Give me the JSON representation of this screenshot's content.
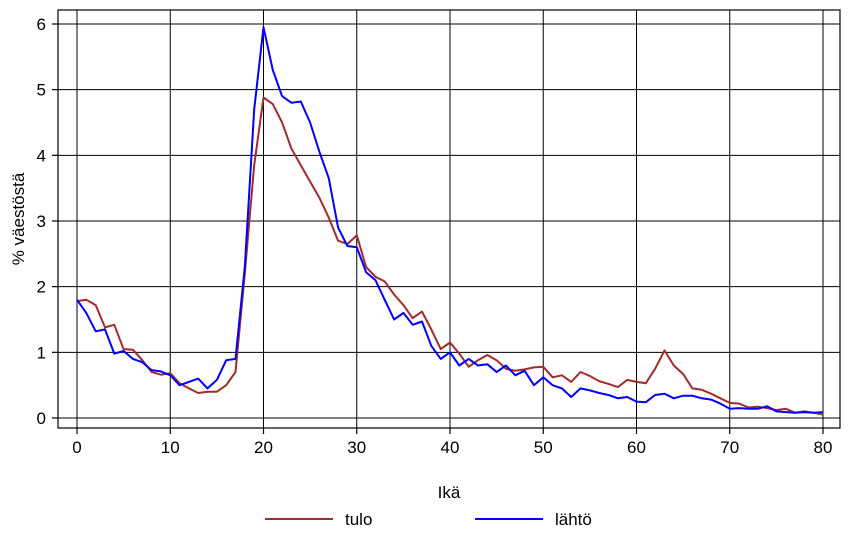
{
  "chart_data": {
    "type": "line",
    "title": "",
    "xlabel": "Ikä",
    "ylabel": "% väestöstä",
    "xlim": [
      0,
      80
    ],
    "ylim": [
      0,
      6
    ],
    "xticks": [
      0,
      10,
      20,
      30,
      40,
      50,
      60,
      70,
      80
    ],
    "yticks": [
      0,
      1,
      2,
      3,
      4,
      5,
      6
    ],
    "x_tick_labels": [
      "0",
      "10",
      "20",
      "30",
      "40",
      "50",
      "60",
      "70",
      "80"
    ],
    "y_tick_labels": [
      "0",
      "1",
      "2",
      "3",
      "4",
      "5",
      "6"
    ],
    "grid": true,
    "legend_position": "bottom",
    "x": [
      0,
      1,
      2,
      3,
      4,
      5,
      6,
      7,
      8,
      9,
      10,
      11,
      12,
      13,
      14,
      15,
      16,
      17,
      18,
      19,
      20,
      21,
      22,
      23,
      24,
      25,
      26,
      27,
      28,
      29,
      30,
      31,
      32,
      33,
      34,
      35,
      36,
      37,
      38,
      39,
      40,
      41,
      42,
      43,
      44,
      45,
      46,
      47,
      48,
      49,
      50,
      51,
      52,
      53,
      54,
      55,
      56,
      57,
      58,
      59,
      60,
      61,
      62,
      63,
      64,
      65,
      66,
      67,
      68,
      69,
      70,
      71,
      72,
      73,
      74,
      75,
      76,
      77,
      78,
      79,
      80
    ],
    "series": [
      {
        "name": "tulo",
        "color": "#a52a2a",
        "values": [
          1.78,
          1.8,
          1.72,
          1.38,
          1.42,
          1.05,
          1.04,
          0.88,
          0.7,
          0.66,
          0.68,
          0.53,
          0.45,
          0.38,
          0.4,
          0.4,
          0.5,
          0.7,
          2.2,
          3.85,
          4.88,
          4.78,
          4.5,
          4.1,
          3.85,
          3.6,
          3.35,
          3.05,
          2.7,
          2.65,
          2.78,
          2.3,
          2.15,
          2.08,
          1.88,
          1.72,
          1.52,
          1.62,
          1.35,
          1.05,
          1.15,
          0.98,
          0.78,
          0.88,
          0.96,
          0.88,
          0.75,
          0.72,
          0.74,
          0.77,
          0.78,
          0.62,
          0.65,
          0.55,
          0.7,
          0.64,
          0.56,
          0.52,
          0.47,
          0.58,
          0.55,
          0.53,
          0.75,
          1.03,
          0.8,
          0.67,
          0.45,
          0.43,
          0.37,
          0.3,
          0.23,
          0.22,
          0.16,
          0.17,
          0.15,
          0.12,
          0.14,
          0.08,
          0.1,
          0.08,
          0.05
        ]
      },
      {
        "name": "lähtö",
        "color": "#0000ff",
        "values": [
          1.8,
          1.6,
          1.32,
          1.35,
          0.98,
          1.02,
          0.9,
          0.85,
          0.73,
          0.71,
          0.65,
          0.5,
          0.55,
          0.6,
          0.45,
          0.58,
          0.88,
          0.9,
          2.3,
          4.7,
          5.95,
          5.3,
          4.9,
          4.8,
          4.82,
          4.5,
          4.05,
          3.65,
          2.9,
          2.62,
          2.6,
          2.22,
          2.1,
          1.8,
          1.5,
          1.6,
          1.42,
          1.47,
          1.1,
          0.9,
          1.0,
          0.8,
          0.9,
          0.8,
          0.82,
          0.7,
          0.8,
          0.65,
          0.72,
          0.5,
          0.62,
          0.5,
          0.45,
          0.32,
          0.45,
          0.42,
          0.38,
          0.35,
          0.3,
          0.32,
          0.25,
          0.24,
          0.35,
          0.37,
          0.3,
          0.34,
          0.34,
          0.3,
          0.28,
          0.22,
          0.14,
          0.15,
          0.14,
          0.14,
          0.18,
          0.1,
          0.09,
          0.08,
          0.09,
          0.08,
          0.09
        ]
      }
    ]
  }
}
